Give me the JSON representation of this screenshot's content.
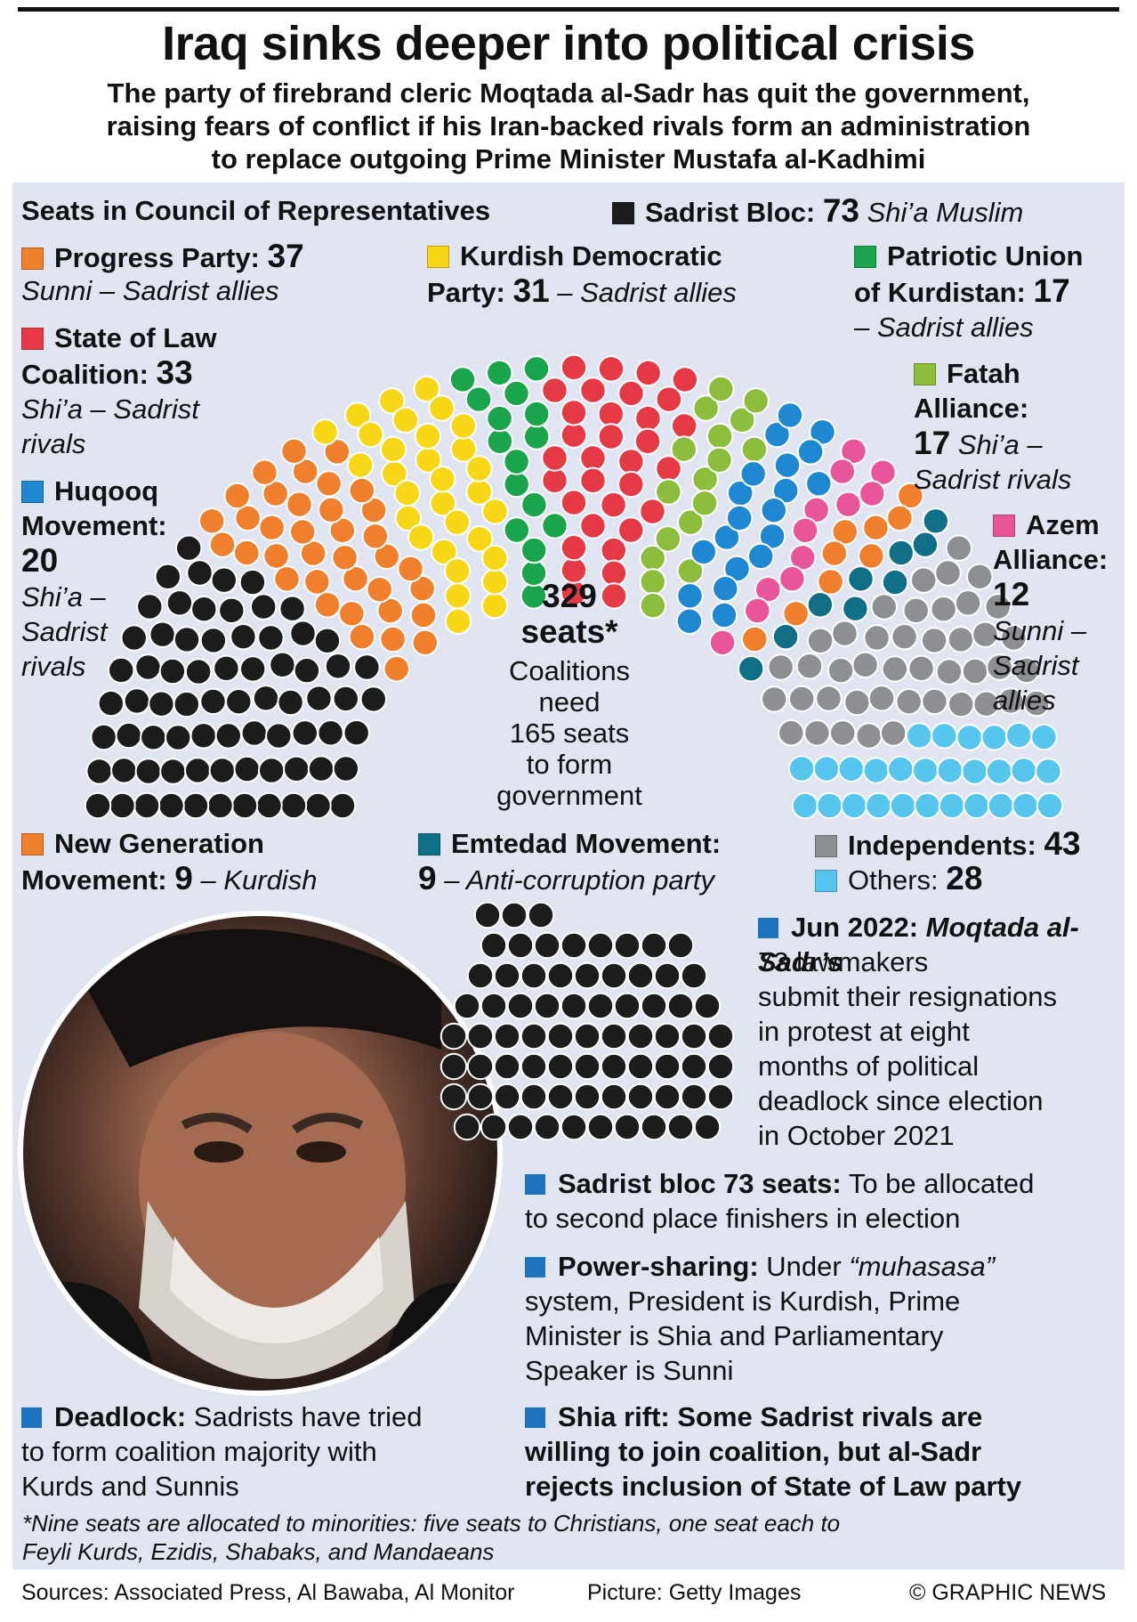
{
  "title": "Iraq sinks deeper into political crisis",
  "subtitle_lines": [
    "The party of firebrand cleric Moqtada al-Sadr has quit the government,",
    "raising fears of conflict if his Iran-backed rivals form an administration",
    "to replace outgoing Prime Minister Mustafa al-Kadhimi"
  ],
  "chart_data": {
    "type": "parliament",
    "title": "Seats in Council of Representatives",
    "total": "329",
    "total_label": "seats*",
    "majority_note_lines": [
      "Coalitions",
      "need",
      "165 seats",
      "to form",
      "government"
    ],
    "series": [
      {
        "name": "Sadrist Bloc",
        "seats": 73,
        "color": "#1c1c1c",
        "desc": "Shi’a Muslim"
      },
      {
        "name": "Progress Party",
        "seats": 37,
        "color": "#f07f2e",
        "desc": "Sunni – Sadrist allies"
      },
      {
        "name": "Kurdish Democratic Party",
        "seats": 31,
        "color": "#f8d716",
        "desc": "– Sadrist allies"
      },
      {
        "name": "Patriotic Union of Kurdistan",
        "seats": 17,
        "color": "#1aa54d",
        "desc": "– Sadrist allies"
      },
      {
        "name": "State of Law Coalition",
        "seats": 33,
        "color": "#e63946",
        "desc": "Shi’a – Sadrist rivals"
      },
      {
        "name": "Fatah Alliance",
        "seats": 17,
        "color": "#8dbd3d",
        "desc": "Shi’a – Sadrist rivals"
      },
      {
        "name": "Huqooq Movement",
        "seats": 20,
        "color": "#1e88d3",
        "desc": "Shi’a – Sadrist rivals"
      },
      {
        "name": "Azem Alliance",
        "seats": 12,
        "color": "#e9559b",
        "desc": "Sunni – Sadrist allies"
      },
      {
        "name": "New Generation Movement",
        "seats": 9,
        "color": "#f07f2e",
        "desc": "– Kurdish"
      },
      {
        "name": "Emtedad Movement",
        "seats": 9,
        "color": "#0f6f86",
        "desc": "– Anti-corruption party"
      },
      {
        "name": "Independents",
        "seats": 43,
        "color": "#8e8f93",
        "desc": ""
      },
      {
        "name": "Others",
        "seats": 28,
        "color": "#56c6ee",
        "desc": ""
      }
    ]
  },
  "legend": {
    "sadrist": {
      "name": "Sadrist Bloc:",
      "value": "73",
      "desc": "Shi’a Muslim"
    },
    "progress": {
      "name": "Progress Party:",
      "value": "37",
      "desc": "Sunni – Sadrist allies"
    },
    "kdp": {
      "name1": "Kurdish Democratic",
      "name2": "Party:",
      "value": "31",
      "desc": "– Sadrist allies"
    },
    "puk": {
      "name1": "Patriotic Union",
      "name2": "of Kurdistan:",
      "value": "17",
      "desc": "– Sadrist allies"
    },
    "sol": {
      "name1": "State of Law",
      "name2": "Coalition:",
      "value": "33",
      "desc1": "Shi’a – Sadrist",
      "desc2": "rivals"
    },
    "fatah": {
      "name1": "Fatah",
      "name2": "Alliance:",
      "value": "17",
      "desc1": "Shi’a –",
      "desc2": "Sadrist rivals"
    },
    "huqooq": {
      "name1": "Huqooq",
      "name2": "Movement:",
      "value": "20",
      "desc1": "Shi’a –",
      "desc2": "Sadrist",
      "desc3": "rivals"
    },
    "azem": {
      "name1": "Azem",
      "name2": "Alliance:",
      "value": "12",
      "desc1": "Sunni –",
      "desc2": "Sadrist",
      "desc3": "allies"
    },
    "newgen": {
      "name1": "New Generation",
      "name2": "Movement:",
      "value": "9",
      "desc": "– Kurdish"
    },
    "emtedad": {
      "name": "Emtedad Movement:",
      "value": "9",
      "desc": "– Anti-corruption party"
    },
    "indep": {
      "name": "Independents:",
      "value": "43"
    },
    "others": {
      "name": "Others:",
      "value": "28"
    }
  },
  "resign_cluster": {
    "seats": 73,
    "color": "#1c1c1c"
  },
  "bullets": {
    "jun": {
      "head": "Jun 2022:",
      "name": "Moqtada al-Sadr’s",
      "lines": [
        "73 lawmakers",
        "submit their resignations",
        "in protest at eight",
        "months of political",
        "deadlock since election",
        "in October 2021"
      ]
    },
    "allocation": {
      "head": "Sadrist bloc 73 seats:",
      "text1": "To be allocated",
      "text2": "to second place finishers in election"
    },
    "power": {
      "head": "Power-sharing:",
      "text1a": "Under",
      "term": "“muhasasa”",
      "text2": "system, President is Kurdish, Prime",
      "text3": "Minister is Shia and Parliamentary",
      "text4": "Speaker is Sunni"
    },
    "deadlock": {
      "head": "Deadlock:",
      "text1": "Sadrists have tried",
      "text2": "to form coalition majority with",
      "text3": "Kurds and Sunnis"
    },
    "rift": {
      "line1": "Shia rift: Some Sadrist rivals are",
      "line2": "willing to join coalition, but al-Sadr",
      "line3": "rejects inclusion of State of Law party"
    }
  },
  "footnote": {
    "line1": "*Nine seats are allocated to minorities: five seats to Christians, one seat each to",
    "line2": "Feyli Kurds, Ezidis, Shabaks, and Mandaeans"
  },
  "footer": {
    "sources": "Sources: Associated Press, Al Bawaba, Al Monitor",
    "picture": "Picture: Getty Images",
    "credit": "© GRAPHIC NEWS"
  },
  "colors": {
    "panel": "#e1e4f1",
    "bullet": "#1e73be"
  }
}
